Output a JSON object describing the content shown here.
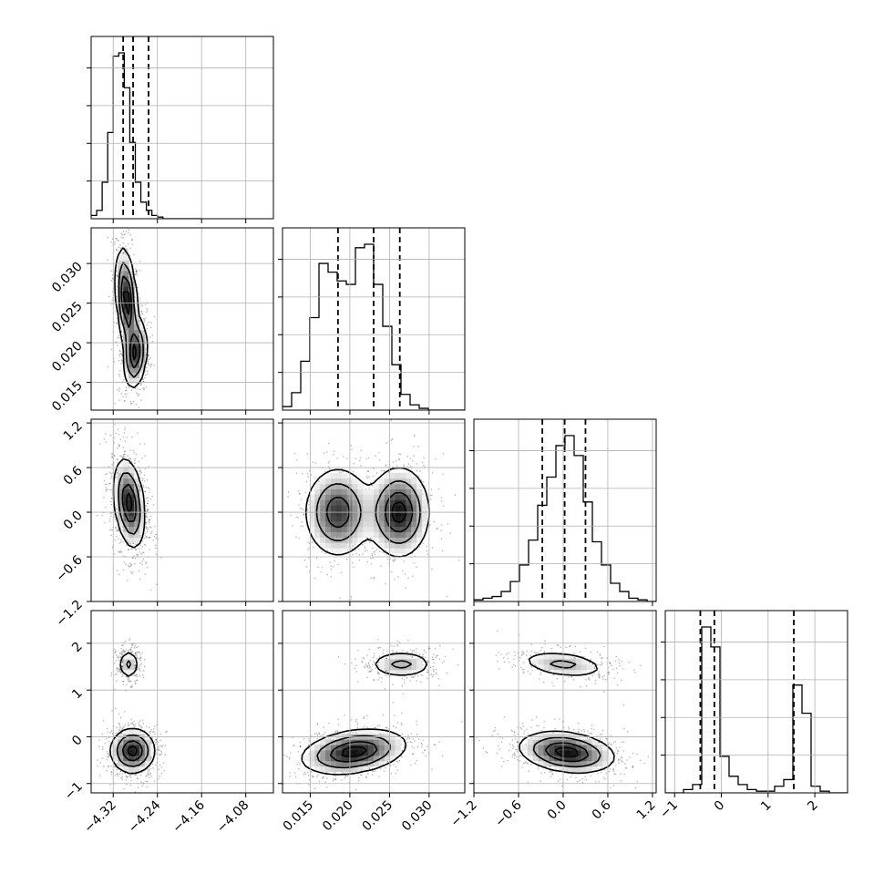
{
  "chart_data": {
    "type": "corner",
    "parameters": [
      {
        "range": [
          -4.36,
          -4.03
        ],
        "ticks": [
          -4.32,
          -4.24,
          -4.16,
          -4.08
        ],
        "tick_labels": [
          "−4.32",
          "−4.24",
          "−4.16",
          "−4.08"
        ],
        "quantiles": [
          -4.302,
          -4.284,
          -4.256
        ],
        "hist": {
          "start": -4.36,
          "step": 0.01,
          "values": [
            2,
            5,
            22,
            52,
            98,
            100,
            79,
            46,
            22,
            10,
            5,
            2,
            1,
            0,
            0,
            0,
            0,
            0,
            0,
            0
          ]
        }
      },
      {
        "range": [
          0.0115,
          0.0345
        ],
        "ticks": [
          0.015,
          0.02,
          0.025,
          0.03
        ],
        "tick_labels": [
          "0.015",
          "0.020",
          "0.025",
          "0.030"
        ],
        "quantiles": [
          0.0185,
          0.023,
          0.0263
        ],
        "hist": {
          "start": 0.0115,
          "step": 0.00115,
          "values": [
            2,
            10,
            28,
            53,
            84,
            79,
            74,
            72,
            93,
            95,
            72,
            48,
            26,
            9,
            3,
            1,
            0,
            0,
            0,
            0
          ]
        }
      },
      {
        "range": [
          -1.2,
          1.25
        ],
        "ticks": [
          -1.2,
          -0.6,
          0.0,
          0.6,
          1.2
        ],
        "tick_labels": [
          "−1.2",
          "−0.6",
          "0.0",
          "0.6",
          "1.2"
        ],
        "quantiles": [
          -0.28,
          0.02,
          0.3
        ],
        "hist": {
          "start": -1.2,
          "step": 0.1225,
          "values": [
            1,
            2,
            3,
            6,
            12,
            22,
            37,
            58,
            75,
            94,
            100,
            88,
            60,
            36,
            22,
            11,
            6,
            2,
            1,
            0
          ]
        }
      },
      {
        "range": [
          -1.2,
          2.7
        ],
        "ticks": [
          -1,
          0,
          1,
          2
        ],
        "tick_labels": [
          "−1",
          "0",
          "1",
          "2"
        ],
        "quantiles": [
          -0.45,
          -0.15,
          1.55
        ],
        "hist": {
          "start": -1.2,
          "step": 0.195,
          "values": [
            0,
            0,
            2,
            5,
            100,
            88,
            22,
            10,
            5,
            2,
            1,
            1,
            4,
            8,
            65,
            48,
            4,
            1,
            0,
            0
          ]
        }
      }
    ],
    "blobs": {
      "1,0": [
        {
          "cx": -4.296,
          "cy": 0.0255,
          "sx": 0.0095,
          "sy": 0.0032,
          "rho": -0.35,
          "w": 1.0
        },
        {
          "cx": -4.28,
          "cy": 0.0186,
          "sx": 0.0105,
          "sy": 0.0022,
          "rho": 0.2,
          "w": 0.85
        }
      ],
      "2,0": [
        {
          "cx": -4.291,
          "cy": 0.12,
          "sx": 0.014,
          "sy": 0.3,
          "rho": -0.3,
          "w": 1.0
        }
      ],
      "2,1": [
        {
          "cx": 0.0185,
          "cy": 0.0,
          "sx": 0.0021,
          "sy": 0.3,
          "rho": 0.0,
          "w": 0.85
        },
        {
          "cx": 0.0262,
          "cy": 0.0,
          "sx": 0.0019,
          "sy": 0.3,
          "rho": 0.0,
          "w": 1.0
        }
      ],
      "3,0": [
        {
          "cx": -4.292,
          "cy": 1.55,
          "sx": 0.009,
          "sy": 0.16,
          "rho": 0.0,
          "w": 0.45
        },
        {
          "cx": -4.285,
          "cy": -0.3,
          "sx": 0.02,
          "sy": 0.24,
          "rho": 0.0,
          "w": 1.0
        }
      ],
      "3,1": [
        {
          "cx": 0.0265,
          "cy": 1.55,
          "sx": 0.0021,
          "sy": 0.15,
          "rho": 0.0,
          "w": 0.45
        },
        {
          "cx": 0.0205,
          "cy": -0.32,
          "sx": 0.0033,
          "sy": 0.24,
          "rho": 0.3,
          "w": 1.0
        }
      ],
      "3,2": [
        {
          "cx": 0.0,
          "cy": 1.55,
          "sx": 0.3,
          "sy": 0.15,
          "rho": -0.35,
          "w": 0.45
        },
        {
          "cx": 0.05,
          "cy": -0.33,
          "sx": 0.32,
          "sy": 0.22,
          "rho": -0.25,
          "w": 1.0
        }
      ]
    },
    "grid": true,
    "title": "",
    "xlabel": "",
    "ylabel": ""
  }
}
